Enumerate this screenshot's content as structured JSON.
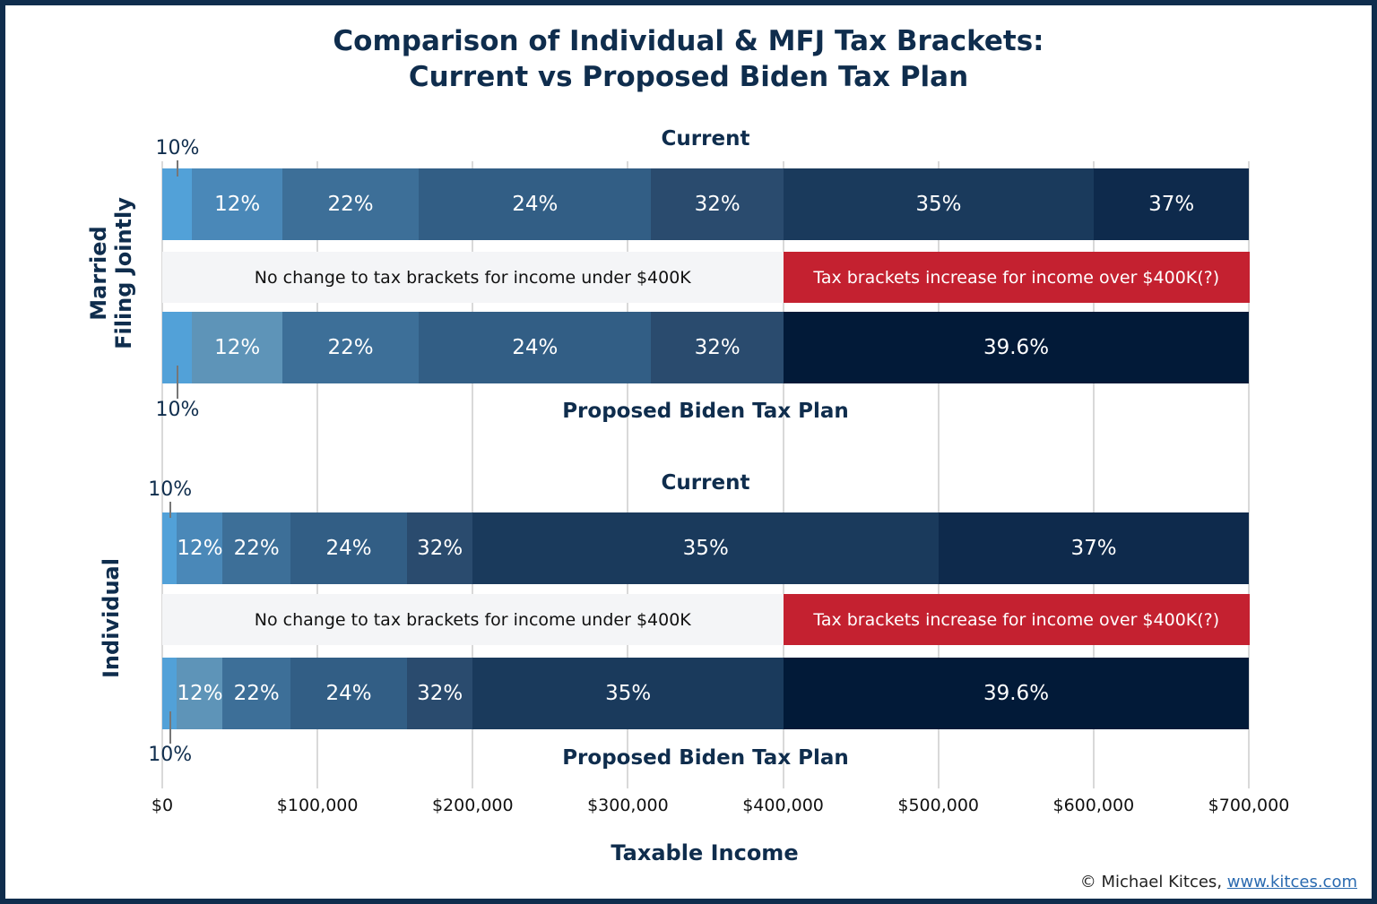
{
  "chart_data": {
    "type": "bar",
    "orientation": "horizontal-stacked",
    "title": "Comparison of Individual & MFJ Tax Brackets:\nCurrent vs Proposed Biden Tax Plan",
    "title_lines": [
      "Comparison of Individual & MFJ Tax Brackets:",
      "Current vs Proposed Biden Tax Plan"
    ],
    "xlabel": "Taxable Income",
    "xlim": [
      0,
      700000
    ],
    "xticks": [
      0,
      100000,
      200000,
      300000,
      400000,
      500000,
      600000,
      700000
    ],
    "xtick_labels": [
      "$0",
      "$100,000",
      "$200,000",
      "$300,000",
      "$400,000",
      "$500,000",
      "$600,000",
      "$700,000"
    ],
    "grid": true,
    "groups": [
      {
        "label_lines": [
          "Married",
          "Filing Jointly"
        ],
        "current": {
          "label": "Current",
          "brackets": [
            {
              "rate": "10%",
              "from": 0,
              "to": 19050,
              "color": "#52a1d8"
            },
            {
              "rate": "12%",
              "from": 19050,
              "to": 77400,
              "color": "#4a88b8"
            },
            {
              "rate": "22%",
              "from": 77400,
              "to": 165000,
              "color": "#3d6f98"
            },
            {
              "rate": "24%",
              "from": 165000,
              "to": 315000,
              "color": "#325e85"
            },
            {
              "rate": "32%",
              "from": 315000,
              "to": 400000,
              "color": "#2a4b6e"
            },
            {
              "rate": "35%",
              "from": 400000,
              "to": 600000,
              "color": "#1a3a5c"
            },
            {
              "rate": "37%",
              "from": 600000,
              "to": 700000,
              "color": "#0e2a4c"
            }
          ]
        },
        "proposed": {
          "label": "Proposed Biden Tax Plan",
          "brackets": [
            {
              "rate": "10%",
              "from": 0,
              "to": 19050,
              "color": "#52a1d8"
            },
            {
              "rate": "12%",
              "from": 19050,
              "to": 77400,
              "color": "#5e94b8"
            },
            {
              "rate": "22%",
              "from": 77400,
              "to": 165000,
              "color": "#3d6f98"
            },
            {
              "rate": "24%",
              "from": 165000,
              "to": 315000,
              "color": "#325e85"
            },
            {
              "rate": "32%",
              "from": 315000,
              "to": 400000,
              "color": "#2a4b6e"
            },
            {
              "rate": "39.6%",
              "from": 400000,
              "to": 700000,
              "color": "#021a38"
            }
          ]
        },
        "annotations": {
          "no_change": "No change to tax brackets for income under $400K",
          "increase": "Tax brackets increase for income over $400K(?)"
        }
      },
      {
        "label_lines": [
          "Individual"
        ],
        "current": {
          "label": "Current",
          "brackets": [
            {
              "rate": "10%",
              "from": 0,
              "to": 9525,
              "color": "#52a1d8"
            },
            {
              "rate": "12%",
              "from": 9525,
              "to": 38700,
              "color": "#4a88b8"
            },
            {
              "rate": "22%",
              "from": 38700,
              "to": 82500,
              "color": "#3d6f98"
            },
            {
              "rate": "24%",
              "from": 82500,
              "to": 157500,
              "color": "#325e85"
            },
            {
              "rate": "32%",
              "from": 157500,
              "to": 200000,
              "color": "#2a4b6e"
            },
            {
              "rate": "35%",
              "from": 200000,
              "to": 500000,
              "color": "#1a3a5c"
            },
            {
              "rate": "37%",
              "from": 500000,
              "to": 700000,
              "color": "#0e2a4c"
            }
          ]
        },
        "proposed": {
          "label": "Proposed Biden Tax Plan",
          "brackets": [
            {
              "rate": "10%",
              "from": 0,
              "to": 9525,
              "color": "#52a1d8"
            },
            {
              "rate": "12%",
              "from": 9525,
              "to": 38700,
              "color": "#5e94b8"
            },
            {
              "rate": "22%",
              "from": 38700,
              "to": 82500,
              "color": "#3d6f98"
            },
            {
              "rate": "24%",
              "from": 82500,
              "to": 157500,
              "color": "#325e85"
            },
            {
              "rate": "32%",
              "from": 157500,
              "to": 200000,
              "color": "#2a4b6e"
            },
            {
              "rate": "35%",
              "from": 200000,
              "to": 400000,
              "color": "#1a3a5c"
            },
            {
              "rate": "39.6%",
              "from": 400000,
              "to": 700000,
              "color": "#021a38"
            }
          ]
        },
        "annotations": {
          "no_change": "No change to tax brackets for income under $400K",
          "increase": "Tax brackets increase for income over $400K(?)"
        }
      }
    ],
    "colors": {
      "no_change_band": "#f4f5f7",
      "increase_band": "#c42130",
      "text": "#0f2d4d",
      "frame": "#0f2d4d"
    }
  },
  "credit": {
    "text": "© Michael Kitces, ",
    "link": "www.kitces.com"
  }
}
